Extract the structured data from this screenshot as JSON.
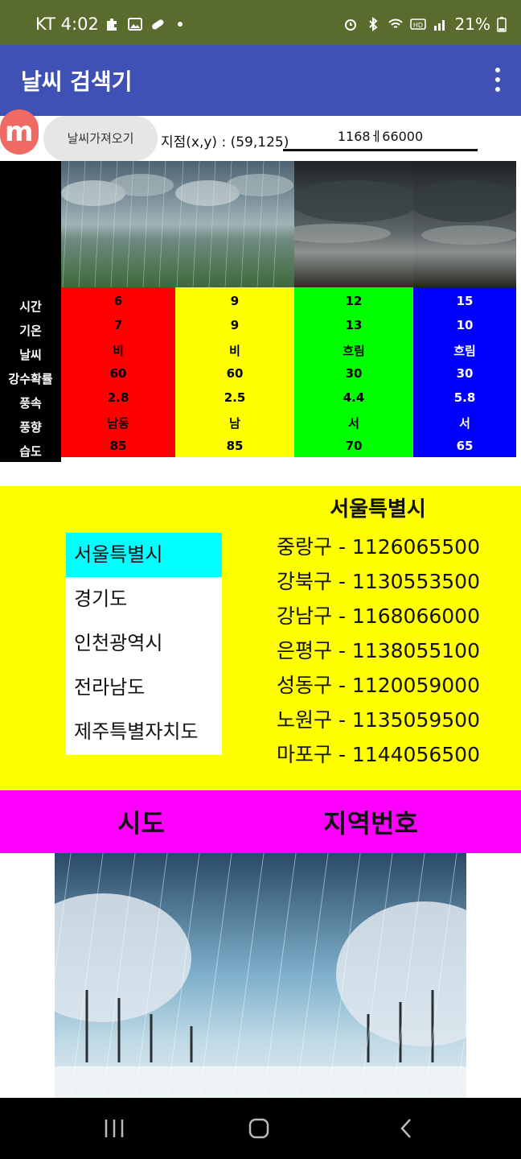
{
  "status_bar": {
    "time": "KT 4:02",
    "battery": "21%",
    "left_icons": [
      "puzzle-icon",
      "image-icon",
      "pill-icon",
      "dot-icon"
    ],
    "right_icons": [
      "alarm-icon",
      "bluetooth-icon",
      "wifi-icon",
      "hd-icon",
      "signal-icon",
      "battery-icon"
    ]
  },
  "app_bar": {
    "title": "날씨 검색기",
    "menu_icon": "more-vert-icon"
  },
  "controls": {
    "fetch_label": "날씨가져오기",
    "point_text": "지점(x,y) : (59,125)",
    "region_value": "1168ㅔ66000"
  },
  "table": {
    "row_labels": [
      "시간",
      "기온",
      "날씨",
      "강수확률",
      "풍속",
      "풍향",
      "습도"
    ],
    "columns": [
      {
        "color": "#ff0000",
        "values": [
          "6",
          "7",
          "비",
          "60",
          "2.8",
          "남동",
          "85"
        ],
        "image": "rain-field"
      },
      {
        "color": "#ffff00",
        "values": [
          "9",
          "9",
          "비",
          "60",
          "2.5",
          "남",
          "85"
        ],
        "image": "rain-field"
      },
      {
        "color": "#00ff00",
        "values": [
          "12",
          "13",
          "흐림",
          "30",
          "4.4",
          "서",
          "70"
        ],
        "image": "cloudy-plain"
      },
      {
        "color": "#0000ff",
        "values": [
          "15",
          "10",
          "흐림",
          "30",
          "5.8",
          "서",
          "65"
        ],
        "image": "cloudy-plain"
      }
    ]
  },
  "sido": {
    "items": [
      "서울특별시",
      "경기도",
      "인천광역시",
      "전라남도",
      "제주특별자치도"
    ],
    "selected": "서울특별시"
  },
  "regions": {
    "title": "서울특별시",
    "lines": [
      "중랑구 - 1126065500",
      "강북구 - 1130553500",
      "강남구 - 1168066000",
      "은평구 - 1138055100",
      "성동구 - 1120059000",
      "노원구 - 1135059500",
      "마포구 - 1144056500"
    ]
  },
  "headers": {
    "sido": "시도",
    "region_code": "지역번호"
  },
  "bottom_image": "snowy-tree-lane"
}
